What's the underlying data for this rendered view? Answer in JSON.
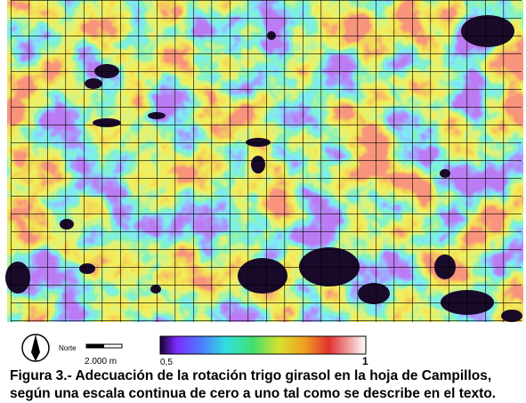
{
  "legend": {
    "north_label": "Norte",
    "scale_label": "2.000 m",
    "colorbar_min_label": "0,5",
    "colorbar_max_label": "1"
  },
  "caption": {
    "line1": "Figura 3.- Adecuación de la rotación trigo girasol en la hoja de Campillos,",
    "line2": "según una escala continua de cero a uno tal como se describe en el texto."
  }
}
